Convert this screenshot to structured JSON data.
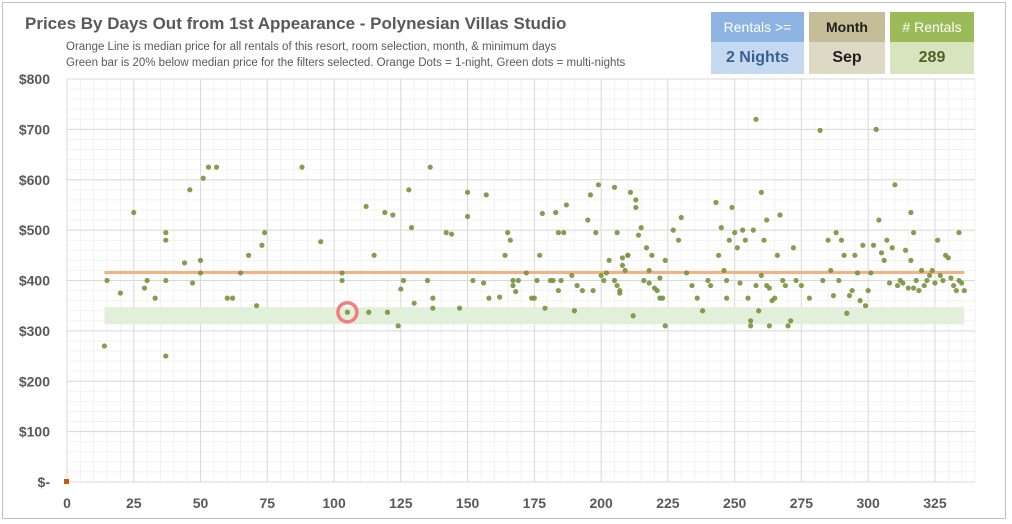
{
  "chart_data": {
    "type": "scatter",
    "title": "Prices By Days Out from 1st Appearance - Polynesian Villas Studio",
    "subtitle_lines": [
      "Orange Line is median price for all rentals of this resort, room selection, month, & minimum days",
      "Green bar is 20% below median price for the filters selected. Orange Dots = 1-night, Green dots = multi-nights"
    ],
    "xlim": [
      0,
      340
    ],
    "ylim": [
      0,
      800
    ],
    "x_ticks": [
      "0",
      "25",
      "50",
      "75",
      "100",
      "125",
      "150",
      "175",
      "200",
      "225",
      "250",
      "275",
      "300",
      "325"
    ],
    "x_tick_values": [
      0,
      25,
      50,
      75,
      100,
      125,
      150,
      175,
      200,
      225,
      250,
      275,
      300,
      325
    ],
    "y_ticks": [
      "$-",
      "$100",
      "$200",
      "$300",
      "$400",
      "$500",
      "$600",
      "$700",
      "$800"
    ],
    "y_tick_values": [
      0,
      100,
      200,
      300,
      400,
      500,
      600,
      700,
      800
    ],
    "grid": true,
    "colors": {
      "median_line": "#f4b183",
      "discount_band": "#e2efda",
      "multi_night_dot": "#77933c",
      "one_night_dot": "#c55a11",
      "highlight_ring": "#f08080",
      "axis_text": "#595959",
      "grid_major": "#d9d9d9",
      "grid_minor": "#f2f2f2"
    },
    "median_line": {
      "y": 416,
      "x_range": [
        14,
        336
      ]
    },
    "discount_band": {
      "y_range": [
        313,
        347
      ],
      "x_range": [
        14,
        336
      ]
    },
    "highlight": {
      "x": 105,
      "y": 337
    },
    "series": [
      {
        "kind": "one-night",
        "points": [
          [
            0,
            0
          ]
        ]
      },
      {
        "kind": "multi-night",
        "points": [
          [
            14,
            270
          ],
          [
            15,
            400
          ],
          [
            20,
            375
          ],
          [
            25,
            535
          ],
          [
            29,
            385
          ],
          [
            30,
            400
          ],
          [
            33,
            365
          ],
          [
            37,
            495
          ],
          [
            37,
            480
          ],
          [
            37,
            400
          ],
          [
            37,
            250
          ],
          [
            44,
            435
          ],
          [
            46,
            580
          ],
          [
            47,
            395
          ],
          [
            50,
            415
          ],
          [
            50,
            440
          ],
          [
            51,
            603
          ],
          [
            53,
            625
          ],
          [
            56,
            625
          ],
          [
            60,
            365
          ],
          [
            62,
            365
          ],
          [
            65,
            415
          ],
          [
            68,
            450
          ],
          [
            71,
            350
          ],
          [
            73,
            470
          ],
          [
            74,
            495
          ],
          [
            88,
            625
          ],
          [
            95,
            477
          ],
          [
            103,
            415
          ],
          [
            103,
            400
          ],
          [
            105,
            337
          ],
          [
            112,
            547
          ],
          [
            113,
            337
          ],
          [
            115,
            450
          ],
          [
            119,
            535
          ],
          [
            120,
            337
          ],
          [
            122,
            530
          ],
          [
            124,
            310
          ],
          [
            125,
            383
          ],
          [
            126,
            400
          ],
          [
            128,
            580
          ],
          [
            129,
            505
          ],
          [
            130,
            355
          ],
          [
            135,
            400
          ],
          [
            136,
            625
          ],
          [
            137,
            345
          ],
          [
            137,
            365
          ],
          [
            142,
            495
          ],
          [
            144,
            492
          ],
          [
            147,
            345
          ],
          [
            150,
            575
          ],
          [
            150,
            527
          ],
          [
            152,
            400
          ],
          [
            156,
            395
          ],
          [
            157,
            570
          ],
          [
            158,
            365
          ],
          [
            162,
            367
          ],
          [
            164,
            450
          ],
          [
            165,
            495
          ],
          [
            166,
            480
          ],
          [
            167,
            400
          ],
          [
            167,
            390
          ],
          [
            168,
            378
          ],
          [
            169,
            400
          ],
          [
            172,
            415
          ],
          [
            174,
            365
          ],
          [
            175,
            365
          ],
          [
            176,
            400
          ],
          [
            177,
            450
          ],
          [
            178,
            533
          ],
          [
            179,
            345
          ],
          [
            181,
            400
          ],
          [
            182,
            400
          ],
          [
            183,
            535
          ],
          [
            184,
            495
          ],
          [
            184,
            380
          ],
          [
            185,
            400
          ],
          [
            186,
            495
          ],
          [
            187,
            550
          ],
          [
            189,
            410
          ],
          [
            190,
            340
          ],
          [
            191,
            390
          ],
          [
            193,
            380
          ],
          [
            195,
            520
          ],
          [
            196,
            570
          ],
          [
            197,
            380
          ],
          [
            198,
            495
          ],
          [
            199,
            590
          ],
          [
            200,
            410
          ],
          [
            201,
            400
          ],
          [
            202,
            415
          ],
          [
            203,
            440
          ],
          [
            205,
            585
          ],
          [
            205,
            400
          ],
          [
            206,
            495
          ],
          [
            206,
            390
          ],
          [
            207,
            380
          ],
          [
            207,
            375
          ],
          [
            208,
            445
          ],
          [
            208,
            430
          ],
          [
            209,
            420
          ],
          [
            210,
            450
          ],
          [
            210,
            450
          ],
          [
            211,
            575
          ],
          [
            212,
            330
          ],
          [
            213,
            560
          ],
          [
            213,
            545
          ],
          [
            214,
            490
          ],
          [
            215,
            505
          ],
          [
            216,
            400
          ],
          [
            217,
            465
          ],
          [
            218,
            420
          ],
          [
            218,
            395
          ],
          [
            219,
            450
          ],
          [
            220,
            385
          ],
          [
            221,
            380
          ],
          [
            222,
            365
          ],
          [
            222,
            405
          ],
          [
            223,
            365
          ],
          [
            224,
            440
          ],
          [
            224,
            310
          ],
          [
            227,
            500
          ],
          [
            229,
            480
          ],
          [
            230,
            525
          ],
          [
            232,
            415
          ],
          [
            234,
            390
          ],
          [
            236,
            365
          ],
          [
            238,
            340
          ],
          [
            240,
            400
          ],
          [
            241,
            390
          ],
          [
            243,
            555
          ],
          [
            244,
            450
          ],
          [
            245,
            505
          ],
          [
            246,
            420
          ],
          [
            247,
            365
          ],
          [
            247,
            400
          ],
          [
            248,
            480
          ],
          [
            249,
            545
          ],
          [
            250,
            495
          ],
          [
            251,
            465
          ],
          [
            252,
            395
          ],
          [
            253,
            500
          ],
          [
            254,
            480
          ],
          [
            255,
            365
          ],
          [
            256,
            310
          ],
          [
            256,
            320
          ],
          [
            257,
            500
          ],
          [
            258,
            720
          ],
          [
            258,
            390
          ],
          [
            259,
            340
          ],
          [
            260,
            575
          ],
          [
            260,
            410
          ],
          [
            261,
            480
          ],
          [
            262,
            520
          ],
          [
            262,
            390
          ],
          [
            263,
            385
          ],
          [
            263,
            310
          ],
          [
            264,
            360
          ],
          [
            265,
            365
          ],
          [
            266,
            450
          ],
          [
            267,
            530
          ],
          [
            268,
            400
          ],
          [
            269,
            390
          ],
          [
            270,
            310
          ],
          [
            271,
            320
          ],
          [
            272,
            465
          ],
          [
            273,
            400
          ],
          [
            275,
            390
          ],
          [
            278,
            365
          ],
          [
            282,
            698
          ],
          [
            283,
            400
          ],
          [
            285,
            480
          ],
          [
            286,
            420
          ],
          [
            287,
            370
          ],
          [
            288,
            495
          ],
          [
            289,
            400
          ],
          [
            290,
            480
          ],
          [
            291,
            450
          ],
          [
            292,
            335
          ],
          [
            293,
            370
          ],
          [
            294,
            380
          ],
          [
            295,
            450
          ],
          [
            296,
            415
          ],
          [
            297,
            360
          ],
          [
            298,
            470
          ],
          [
            299,
            350
          ],
          [
            300,
            380
          ],
          [
            301,
            415
          ],
          [
            302,
            470
          ],
          [
            303,
            700
          ],
          [
            304,
            520
          ],
          [
            305,
            455
          ],
          [
            306,
            440
          ],
          [
            307,
            480
          ],
          [
            308,
            395
          ],
          [
            309,
            465
          ],
          [
            310,
            590
          ],
          [
            311,
            390
          ],
          [
            312,
            400
          ],
          [
            313,
            395
          ],
          [
            314,
            460
          ],
          [
            315,
            385
          ],
          [
            316,
            440
          ],
          [
            316,
            535
          ],
          [
            317,
            495
          ],
          [
            317,
            385
          ],
          [
            318,
            400
          ],
          [
            319,
            380
          ],
          [
            320,
            420
          ],
          [
            321,
            390
          ],
          [
            322,
            400
          ],
          [
            323,
            410
          ],
          [
            324,
            420
          ],
          [
            325,
            395
          ],
          [
            326,
            480
          ],
          [
            327,
            410
          ],
          [
            328,
            400
          ],
          [
            329,
            450
          ],
          [
            330,
            445
          ],
          [
            331,
            405
          ],
          [
            332,
            390
          ],
          [
            333,
            380
          ],
          [
            334,
            495
          ],
          [
            334,
            400
          ],
          [
            335,
            395
          ],
          [
            336,
            380
          ]
        ]
      }
    ]
  },
  "header": {
    "title": "Prices By Days Out from 1st Appearance - Polynesian Villas Studio",
    "subtitle_line1": "Orange Line is median price for all rentals of this resort, room selection, month, & minimum days",
    "subtitle_line2": "Green bar is 20% below median price for the filters selected. Orange Dots = 1-night, Green dots = multi-nights"
  },
  "filters": {
    "rentals": {
      "label": "Rentals >=",
      "value": "2 Nights"
    },
    "month": {
      "label": "Month",
      "value": "Sep"
    },
    "count": {
      "label": "# Rentals",
      "value": "289"
    }
  }
}
